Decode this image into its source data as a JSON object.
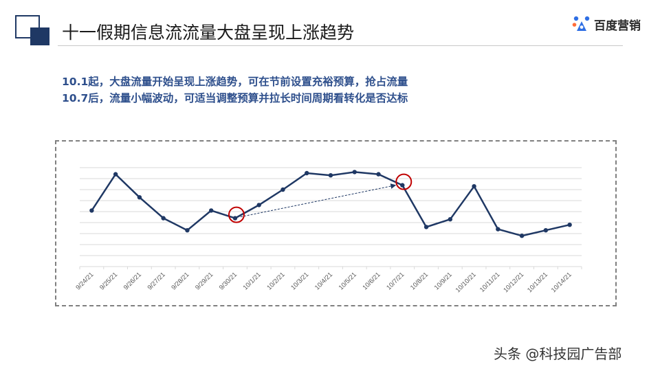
{
  "header": {
    "title": "十一假期信息流流量大盘呈现上涨趋势",
    "logo_text": "百度营销",
    "logo_icon": "baidu-marketing-icon"
  },
  "subtitle_lines": [
    "10.1起，大盘流量开始呈现上涨趋势，可在节前设置充裕预算，抢占流量",
    "10.7后，流量小幅波动，可适当调整预算并拉长时间周期看转化是否达标"
  ],
  "watermark": "头条 @科技园广告部",
  "colors": {
    "title_bar": "#1f3864",
    "subtitle": "#2e4f8c",
    "line": "#1f3864",
    "highlight": "#c00000",
    "grid": "#d9d9d9",
    "frame": "#7f7f7f"
  },
  "chart_data": {
    "type": "line",
    "x": [
      "9/24/21",
      "9/25/21",
      "9/26/21",
      "9/27/21",
      "9/28/21",
      "9/29/21",
      "9/30/21",
      "10/1/21",
      "10/2/21",
      "10/3/21",
      "10/4/21",
      "10/5/21",
      "10/6/21",
      "10/7/21",
      "10/8/21",
      "10/9/21",
      "10/10/21",
      "10/11/21",
      "10/12/21",
      "10/13/21",
      "10/14/21"
    ],
    "series": [
      {
        "values": [
          5.1,
          8.4,
          6.3,
          4.4,
          3.3,
          5.1,
          4.4,
          5.6,
          7.0,
          8.5,
          8.3,
          8.6,
          8.4,
          7.4,
          3.6,
          4.3,
          7.3,
          3.4,
          2.8,
          3.3,
          3.8
        ]
      }
    ],
    "ylim": [
      0,
      10
    ],
    "y_axis_labels_shown": false,
    "grid": true,
    "legend": "none",
    "highlight_points": [
      "9/30/21",
      "10/7/21"
    ],
    "trend_arrow": {
      "from": "9/30/21",
      "to": "10/7/21"
    }
  }
}
